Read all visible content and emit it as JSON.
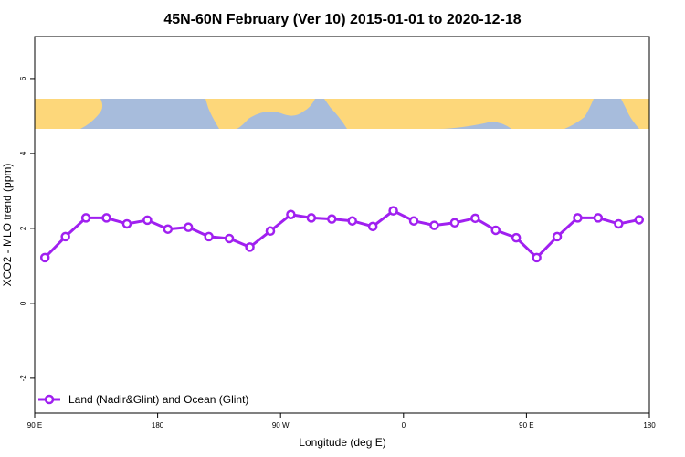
{
  "chart_data": {
    "type": "line",
    "title": "45N-60N February (Ver 10)   2015-01-01 to 2020-12-18",
    "x_label": "Longitude (deg E)",
    "y_label": "XCO2 - MLO trend (ppm)",
    "x": [
      97.5,
      112.5,
      127.5,
      142.5,
      157.5,
      172.5,
      187.5,
      202.5,
      217.5,
      232.5,
      247.5,
      262.5,
      277.5,
      292.5,
      307.5,
      322.5,
      337.5,
      352.5,
      367.5,
      382.5,
      397.5,
      412.5,
      427.5,
      442.5,
      457.5,
      472.5,
      487.5,
      502.5,
      517.5,
      532.5
    ],
    "series": [
      {
        "name": "Land (Nadir&Glint) and Ocean (Glint)",
        "color": "#a020f0",
        "values": [
          1.22,
          1.78,
          2.28,
          2.28,
          2.12,
          2.22,
          1.98,
          2.03,
          1.78,
          1.73,
          1.5,
          1.93,
          2.37,
          2.28,
          2.25,
          2.2,
          2.05,
          2.47,
          2.2,
          2.08,
          2.15,
          2.27,
          1.95,
          1.75,
          1.22,
          1.78,
          2.28,
          2.28,
          2.12,
          2.23
        ]
      }
    ],
    "xlim": [
      90,
      540
    ],
    "xticks": [
      {
        "value": 90,
        "label": "90 E"
      },
      {
        "value": 180,
        "label": "180"
      },
      {
        "value": 270,
        "label": "90 W"
      },
      {
        "value": 360,
        "label": "0"
      },
      {
        "value": 450,
        "label": "90 E"
      },
      {
        "value": 540,
        "label": "180"
      }
    ],
    "ylim": [
      -2.93,
      7.12
    ],
    "yticks": [
      -2,
      0,
      2,
      4,
      6
    ],
    "legend": "bottom-left"
  }
}
